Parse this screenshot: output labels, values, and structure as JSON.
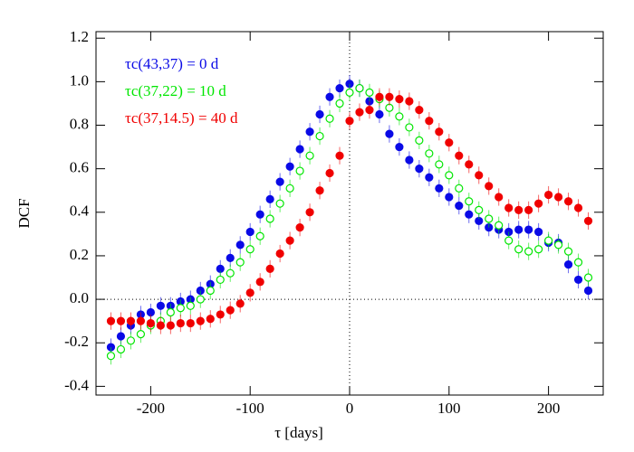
{
  "chart_data": {
    "type": "scatter",
    "x_label": "τ [days]",
    "y_label": "DCF",
    "x": [
      -240,
      -230,
      -220,
      -210,
      -200,
      -190,
      -180,
      -170,
      -160,
      -150,
      -140,
      -130,
      -120,
      -110,
      -100,
      -90,
      -80,
      -70,
      -60,
      -50,
      -40,
      -30,
      -20,
      -10,
      0,
      10,
      20,
      30,
      40,
      50,
      60,
      70,
      80,
      90,
      100,
      110,
      120,
      130,
      140,
      150,
      160,
      170,
      180,
      190,
      200,
      210,
      220,
      230,
      240
    ],
    "series": [
      {
        "name": "τc(43,37) = 0 d",
        "color": "#0a0ae6",
        "marker": "filled",
        "values": [
          -0.22,
          -0.17,
          -0.12,
          -0.07,
          -0.06,
          -0.03,
          -0.03,
          -0.01,
          0.0,
          0.04,
          0.07,
          0.14,
          0.19,
          0.25,
          0.31,
          0.39,
          0.46,
          0.54,
          0.61,
          0.69,
          0.77,
          0.85,
          0.93,
          0.97,
          0.99,
          0.97,
          0.91,
          0.85,
          0.76,
          0.7,
          0.64,
          0.6,
          0.56,
          0.51,
          0.47,
          0.43,
          0.39,
          0.36,
          0.33,
          0.32,
          0.31,
          0.32,
          0.32,
          0.31,
          0.26,
          0.26,
          0.16,
          0.09,
          0.04
        ],
        "errors": [
          0.04,
          0.04,
          0.04,
          0.04,
          0.04,
          0.04,
          0.04,
          0.04,
          0.04,
          0.04,
          0.04,
          0.04,
          0.04,
          0.04,
          0.04,
          0.04,
          0.04,
          0.04,
          0.04,
          0.04,
          0.04,
          0.04,
          0.04,
          0.04,
          0.04,
          0.04,
          0.04,
          0.04,
          0.04,
          0.04,
          0.04,
          0.04,
          0.04,
          0.04,
          0.04,
          0.04,
          0.04,
          0.04,
          0.04,
          0.04,
          0.04,
          0.04,
          0.04,
          0.04,
          0.04,
          0.04,
          0.04,
          0.04,
          0.04
        ]
      },
      {
        "name": "τc(37,22) = 10 d",
        "color": "#00e600",
        "marker": "open",
        "values": [
          -0.26,
          -0.23,
          -0.19,
          -0.16,
          -0.12,
          -0.1,
          -0.06,
          -0.04,
          -0.03,
          0.0,
          0.04,
          0.09,
          0.12,
          0.17,
          0.23,
          0.29,
          0.37,
          0.44,
          0.51,
          0.59,
          0.66,
          0.75,
          0.83,
          0.9,
          0.95,
          0.97,
          0.95,
          0.92,
          0.88,
          0.84,
          0.79,
          0.73,
          0.67,
          0.62,
          0.57,
          0.51,
          0.45,
          0.41,
          0.37,
          0.34,
          0.27,
          0.23,
          0.22,
          0.23,
          0.27,
          0.25,
          0.22,
          0.17,
          0.1
        ],
        "errors": [
          0.04,
          0.04,
          0.04,
          0.04,
          0.04,
          0.04,
          0.04,
          0.04,
          0.04,
          0.04,
          0.04,
          0.04,
          0.04,
          0.04,
          0.04,
          0.04,
          0.04,
          0.04,
          0.04,
          0.04,
          0.04,
          0.04,
          0.04,
          0.04,
          0.04,
          0.04,
          0.04,
          0.04,
          0.04,
          0.04,
          0.04,
          0.04,
          0.04,
          0.04,
          0.04,
          0.04,
          0.04,
          0.04,
          0.04,
          0.04,
          0.04,
          0.04,
          0.04,
          0.04,
          0.04,
          0.04,
          0.04,
          0.04,
          0.04
        ]
      },
      {
        "name": "τc(37,14.5) = 40 d",
        "color": "#f00000",
        "marker": "filled",
        "values": [
          -0.1,
          -0.1,
          -0.1,
          -0.1,
          -0.11,
          -0.12,
          -0.12,
          -0.11,
          -0.11,
          -0.1,
          -0.09,
          -0.07,
          -0.05,
          -0.02,
          0.03,
          0.08,
          0.14,
          0.21,
          0.27,
          0.33,
          0.4,
          0.5,
          0.58,
          0.66,
          0.82,
          0.86,
          0.87,
          0.93,
          0.93,
          0.92,
          0.91,
          0.87,
          0.82,
          0.77,
          0.72,
          0.66,
          0.62,
          0.57,
          0.52,
          0.47,
          0.42,
          0.41,
          0.41,
          0.44,
          0.48,
          0.47,
          0.45,
          0.42,
          0.36
        ],
        "errors": [
          0.04,
          0.04,
          0.04,
          0.04,
          0.04,
          0.04,
          0.04,
          0.04,
          0.04,
          0.04,
          0.04,
          0.04,
          0.04,
          0.04,
          0.04,
          0.04,
          0.04,
          0.04,
          0.04,
          0.04,
          0.04,
          0.04,
          0.04,
          0.04,
          0.04,
          0.04,
          0.04,
          0.04,
          0.04,
          0.04,
          0.04,
          0.04,
          0.04,
          0.04,
          0.04,
          0.04,
          0.04,
          0.04,
          0.04,
          0.04,
          0.04,
          0.04,
          0.04,
          0.04,
          0.04,
          0.04,
          0.04,
          0.04,
          0.04
        ]
      }
    ],
    "xlim": [
      -255,
      255
    ],
    "ylim": [
      -0.44,
      1.23
    ],
    "xticks": [
      -200,
      -100,
      0,
      100,
      200
    ],
    "yticks": [
      -0.4,
      -0.2,
      {
        "value": 0,
        "label": "0.0"
      },
      0.2,
      0.4,
      0.6,
      0.8,
      {
        "value": 1,
        "label": "1.0"
      },
      1.2
    ],
    "reference_lines": {
      "x": 0,
      "y": 0
    },
    "legend": "upper left"
  }
}
